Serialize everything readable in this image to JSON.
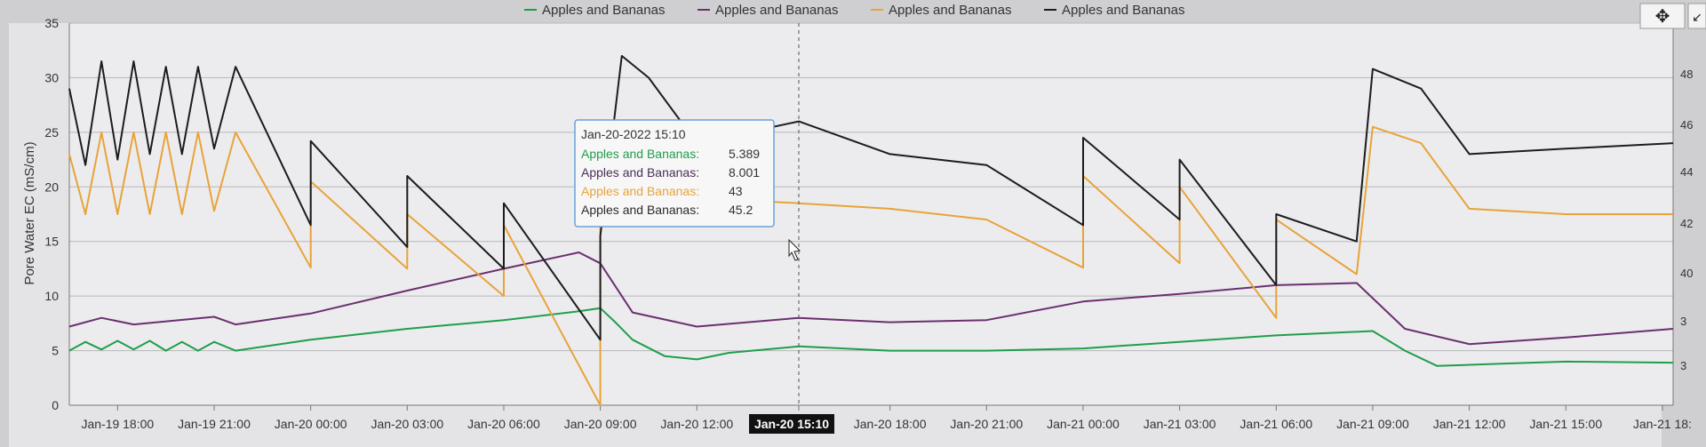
{
  "legend": [
    {
      "label": "Apples and Bananas",
      "color": "#1f9e4a"
    },
    {
      "label": "Apples and Bananas",
      "color": "#6b2f6f"
    },
    {
      "label": "Apples and Bananas",
      "color": "#e8a33a"
    },
    {
      "label": "Apples and Bananas",
      "color": "#1c1c1c"
    }
  ],
  "toolbar": {
    "move_icon": "move-arrows-icon",
    "menu_glyph": "↙"
  },
  "crosshair_label": "Jan-20 15:10",
  "tooltip": {
    "title": "Jan-20-2022 15:10",
    "rows": [
      {
        "label": "Apples and Bananas:",
        "value": "5.389",
        "color": "#1f9e4a"
      },
      {
        "label": "Apples and Bananas:",
        "value": "8.001",
        "color": "#4a2f55"
      },
      {
        "label": "Apples and Bananas:",
        "value": "43",
        "color": "#e8a33a"
      },
      {
        "label": "Apples and Bananas:",
        "value": "45.2",
        "color": "#2a2a2a"
      }
    ]
  },
  "chart_data": {
    "type": "line",
    "ylabel": "Pore Water EC (mS/cm)",
    "ylim": [
      0,
      35
    ],
    "yticks": [
      0,
      5,
      10,
      15,
      20,
      25,
      30,
      35
    ],
    "y2ticks_visible": [
      "48",
      "46",
      "44",
      "42",
      "40",
      "3",
      "3"
    ],
    "xlim": [
      "Jan-19 16:30",
      "Jan-21 18:20"
    ],
    "xticks": [
      "Jan-19 18:00",
      "Jan-19 21:00",
      "Jan-20 00:00",
      "Jan-20 03:00",
      "Jan-20 06:00",
      "Jan-20 09:00",
      "Jan-20 12:00",
      "Jan-20 15:10",
      "Jan-20 18:00",
      "Jan-20 21:00",
      "Jan-21 00:00",
      "Jan-21 03:00",
      "Jan-21 06:00",
      "Jan-21 09:00",
      "Jan-21 12:00",
      "Jan-21 15:00",
      "Jan-21 18:"
    ],
    "grid": true,
    "legend_position": "top",
    "series": [
      {
        "color": "#1f9e4a",
        "points": [
          [
            "Jan-19 16:30",
            5.0
          ],
          [
            "Jan-19 17:00",
            5.8
          ],
          [
            "Jan-19 17:30",
            5.1
          ],
          [
            "Jan-19 18:00",
            5.9
          ],
          [
            "Jan-19 18:30",
            5.1
          ],
          [
            "Jan-19 19:00",
            5.9
          ],
          [
            "Jan-19 19:30",
            5.0
          ],
          [
            "Jan-19 20:00",
            5.8
          ],
          [
            "Jan-19 20:30",
            5.0
          ],
          [
            "Jan-19 21:00",
            5.8
          ],
          [
            "Jan-19 21:40",
            5.0
          ],
          [
            "Jan-20 00:00",
            6.0
          ],
          [
            "Jan-20 03:00",
            7.0
          ],
          [
            "Jan-20 06:00",
            7.8
          ],
          [
            "Jan-20 08:20",
            8.6
          ],
          [
            "Jan-20 09:00",
            8.9
          ],
          [
            "Jan-20 09:30",
            7.5
          ],
          [
            "Jan-20 10:00",
            6.0
          ],
          [
            "Jan-20 11:00",
            4.5
          ],
          [
            "Jan-20 12:00",
            4.2
          ],
          [
            "Jan-20 13:00",
            4.8
          ],
          [
            "Jan-20 15:10",
            5.389
          ],
          [
            "Jan-20 18:00",
            5.0
          ],
          [
            "Jan-20 21:00",
            5.0
          ],
          [
            "Jan-21 00:00",
            5.2
          ],
          [
            "Jan-21 03:00",
            5.8
          ],
          [
            "Jan-21 06:00",
            6.4
          ],
          [
            "Jan-21 09:00",
            6.8
          ],
          [
            "Jan-21 10:00",
            5.0
          ],
          [
            "Jan-21 11:00",
            3.6
          ],
          [
            "Jan-21 13:00",
            3.8
          ],
          [
            "Jan-21 15:00",
            4.0
          ],
          [
            "Jan-21 18:20",
            3.9
          ]
        ]
      },
      {
        "color": "#6b2f6f",
        "points": [
          [
            "Jan-19 16:30",
            7.2
          ],
          [
            "Jan-19 17:30",
            8.0
          ],
          [
            "Jan-19 18:30",
            7.4
          ],
          [
            "Jan-19 21:00",
            8.1
          ],
          [
            "Jan-19 21:40",
            7.4
          ],
          [
            "Jan-20 00:00",
            8.4
          ],
          [
            "Jan-20 03:00",
            10.5
          ],
          [
            "Jan-20 06:00",
            12.5
          ],
          [
            "Jan-20 08:20",
            14.0
          ],
          [
            "Jan-20 09:00",
            13.0
          ],
          [
            "Jan-20 10:00",
            8.5
          ],
          [
            "Jan-20 12:00",
            7.2
          ],
          [
            "Jan-20 15:10",
            8.001
          ],
          [
            "Jan-20 18:00",
            7.6
          ],
          [
            "Jan-20 21:00",
            7.8
          ],
          [
            "Jan-21 00:00",
            9.5
          ],
          [
            "Jan-21 03:00",
            10.2
          ],
          [
            "Jan-21 06:00",
            11.0
          ],
          [
            "Jan-21 08:30",
            11.2
          ],
          [
            "Jan-21 10:00",
            7.0
          ],
          [
            "Jan-21 12:00",
            5.6
          ],
          [
            "Jan-21 15:00",
            6.2
          ],
          [
            "Jan-21 18:20",
            7.0
          ]
        ]
      },
      {
        "color": "#e8a33a",
        "points": [
          [
            "Jan-19 16:30",
            23.0
          ],
          [
            "Jan-19 17:00",
            17.5
          ],
          [
            "Jan-19 17:30",
            25.0
          ],
          [
            "Jan-19 18:00",
            17.5
          ],
          [
            "Jan-19 18:30",
            25.0
          ],
          [
            "Jan-19 19:00",
            17.5
          ],
          [
            "Jan-19 19:30",
            25.0
          ],
          [
            "Jan-19 20:00",
            17.5
          ],
          [
            "Jan-19 20:30",
            25.0
          ],
          [
            "Jan-19 21:00",
            17.8
          ],
          [
            "Jan-19 21:40",
            25.0
          ],
          [
            "Jan-20 00:00",
            12.6
          ],
          [
            "Jan-20 00:00",
            20.5
          ],
          [
            "Jan-20 03:00",
            12.5
          ],
          [
            "Jan-20 03:00",
            17.5
          ],
          [
            "Jan-20 06:00",
            10.0
          ],
          [
            "Jan-20 06:00",
            16.5
          ],
          [
            "Jan-20 09:00",
            0.0
          ],
          [
            "Jan-20 09:00",
            18.0
          ],
          [
            "Jan-20 10:00",
            22.0
          ],
          [
            "Jan-20 12:00",
            19.0
          ],
          [
            "Jan-20 15:10",
            18.5
          ],
          [
            "Jan-20 18:00",
            18.0
          ],
          [
            "Jan-20 21:00",
            17.0
          ],
          [
            "Jan-21 00:00",
            12.6
          ],
          [
            "Jan-21 00:00",
            21.0
          ],
          [
            "Jan-21 03:00",
            13.0
          ],
          [
            "Jan-21 03:00",
            20.0
          ],
          [
            "Jan-21 06:00",
            8.0
          ],
          [
            "Jan-21 06:00",
            17.0
          ],
          [
            "Jan-21 08:30",
            12.0
          ],
          [
            "Jan-21 09:00",
            25.5
          ],
          [
            "Jan-21 10:30",
            24.0
          ],
          [
            "Jan-21 12:00",
            18.0
          ],
          [
            "Jan-21 15:00",
            17.5
          ],
          [
            "Jan-21 18:20",
            17.5
          ]
        ]
      },
      {
        "color": "#1c1c1c",
        "points": [
          [
            "Jan-19 16:30",
            29.0
          ],
          [
            "Jan-19 17:00",
            22.0
          ],
          [
            "Jan-19 17:30",
            31.5
          ],
          [
            "Jan-19 18:00",
            22.5
          ],
          [
            "Jan-19 18:30",
            31.5
          ],
          [
            "Jan-19 19:00",
            23.0
          ],
          [
            "Jan-19 19:30",
            31.0
          ],
          [
            "Jan-19 20:00",
            23.0
          ],
          [
            "Jan-19 20:30",
            31.0
          ],
          [
            "Jan-19 21:00",
            23.5
          ],
          [
            "Jan-19 21:40",
            31.0
          ],
          [
            "Jan-20 00:00",
            16.5
          ],
          [
            "Jan-20 00:00",
            24.2
          ],
          [
            "Jan-20 03:00",
            14.5
          ],
          [
            "Jan-20 03:00",
            21.0
          ],
          [
            "Jan-20 06:00",
            12.5
          ],
          [
            "Jan-20 06:00",
            18.5
          ],
          [
            "Jan-20 09:00",
            6.0
          ],
          [
            "Jan-20 09:00",
            15.5
          ],
          [
            "Jan-20 09:40",
            32.0
          ],
          [
            "Jan-20 10:30",
            30.0
          ],
          [
            "Jan-20 12:00",
            24.0
          ],
          [
            "Jan-20 15:10",
            26.0
          ],
          [
            "Jan-20 18:00",
            23.0
          ],
          [
            "Jan-20 21:00",
            22.0
          ],
          [
            "Jan-21 00:00",
            16.5
          ],
          [
            "Jan-21 00:00",
            24.5
          ],
          [
            "Jan-21 03:00",
            17.0
          ],
          [
            "Jan-21 03:00",
            22.5
          ],
          [
            "Jan-21 06:00",
            11.0
          ],
          [
            "Jan-21 06:00",
            17.5
          ],
          [
            "Jan-21 08:30",
            15.0
          ],
          [
            "Jan-21 09:00",
            30.8
          ],
          [
            "Jan-21 10:30",
            29.0
          ],
          [
            "Jan-21 12:00",
            23.0
          ],
          [
            "Jan-21 15:00",
            23.5
          ],
          [
            "Jan-21 18:20",
            24.0
          ]
        ]
      }
    ]
  }
}
